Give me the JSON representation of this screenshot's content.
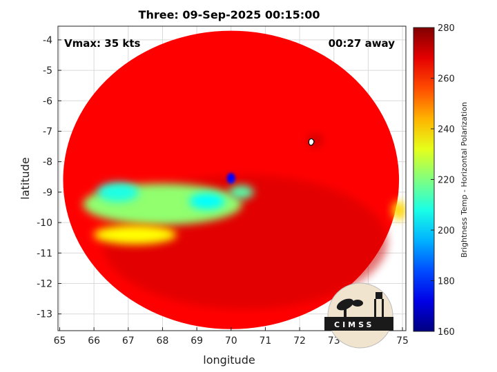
{
  "chart_data": {
    "type": "heatmap",
    "title": "Three: 09-Sep-2025 00:15:00",
    "xlabel": "longitude",
    "ylabel": "latitude",
    "xlim": [
      64.95,
      75.1
    ],
    "ylim": [
      -13.55,
      -3.55
    ],
    "x_ticks": [
      65,
      66,
      67,
      68,
      69,
      70,
      71,
      72,
      73,
      74,
      75
    ],
    "y_ticks": [
      -4,
      -5,
      -6,
      -7,
      -8,
      -9,
      -10,
      -11,
      -12,
      -13
    ],
    "grid": true,
    "colorbar": {
      "label": "Brightness Temp - Horizontal Polarization",
      "range": [
        160,
        280
      ],
      "ticks": [
        280,
        260,
        240,
        220,
        200,
        180,
        160
      ],
      "colormap": "jet"
    },
    "annotations": {
      "vmax": "Vmax: 35 kts",
      "time_away": "00:27 away"
    },
    "swath": {
      "center_lon": 70.0,
      "center_lat": -8.6,
      "radius_deg": 4.9,
      "background_temp": 265
    },
    "features": [
      {
        "name": "main cold band",
        "lon": 68.0,
        "lat": -9.4,
        "temp": 222
      },
      {
        "name": "cold core west",
        "lon": 66.7,
        "lat": -9.0,
        "temp": 208
      },
      {
        "name": "cold core east",
        "lon": 69.3,
        "lat": -9.3,
        "temp": 205
      },
      {
        "name": "convective cell",
        "lon": 70.0,
        "lat": -8.55,
        "temp": 175
      },
      {
        "name": "cell 2",
        "lon": 70.3,
        "lat": -9.0,
        "temp": 215
      },
      {
        "name": "storm center",
        "lon": 72.45,
        "lat": -7.3,
        "temp": 270
      },
      {
        "name": "east edge",
        "lon": 74.9,
        "lat": -9.6,
        "temp": 240
      },
      {
        "name": "southern band",
        "lon": 67.2,
        "lat": -10.4,
        "temp": 235
      }
    ]
  },
  "logo": {
    "text": "CIMSS"
  },
  "colors": {
    "background": "#ffffff",
    "axis": "#222222",
    "grid": "#d9d9d9"
  }
}
